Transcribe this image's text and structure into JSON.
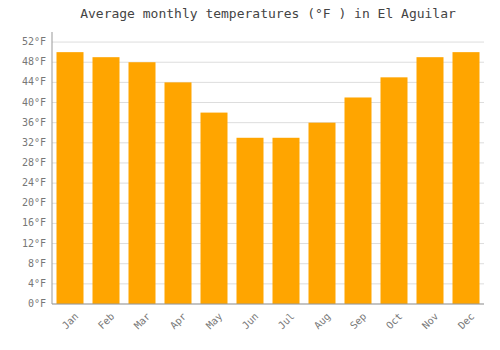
{
  "chart_data": {
    "type": "bar",
    "title": "Average monthly temperatures (°F ) in El Aguilar",
    "categories": [
      "Jan",
      "Feb",
      "Mar",
      "Apr",
      "May",
      "Jun",
      "Jul",
      "Aug",
      "Sep",
      "Oct",
      "Nov",
      "Dec"
    ],
    "values": [
      50,
      49,
      48,
      44,
      38,
      33,
      33,
      36,
      41,
      45,
      49,
      50
    ],
    "color": "#FFA500",
    "ylim": [
      0,
      54
    ],
    "yticks": [
      {
        "value": 0,
        "label": "0°F"
      },
      {
        "value": 4,
        "label": "4°F"
      },
      {
        "value": 8,
        "label": "8°F"
      },
      {
        "value": 12,
        "label": "12°F"
      },
      {
        "value": 16,
        "label": "16°F"
      },
      {
        "value": 20,
        "label": "20°F"
      },
      {
        "value": 24,
        "label": "24°F"
      },
      {
        "value": 28,
        "label": "28°F"
      },
      {
        "value": 32,
        "label": "32°F"
      },
      {
        "value": 36,
        "label": "36°F"
      },
      {
        "value": 40,
        "label": "40°F"
      },
      {
        "value": 44,
        "label": "44°F"
      },
      {
        "value": 48,
        "label": "48°F"
      },
      {
        "value": 52,
        "label": "52°F"
      }
    ],
    "grid": true
  }
}
